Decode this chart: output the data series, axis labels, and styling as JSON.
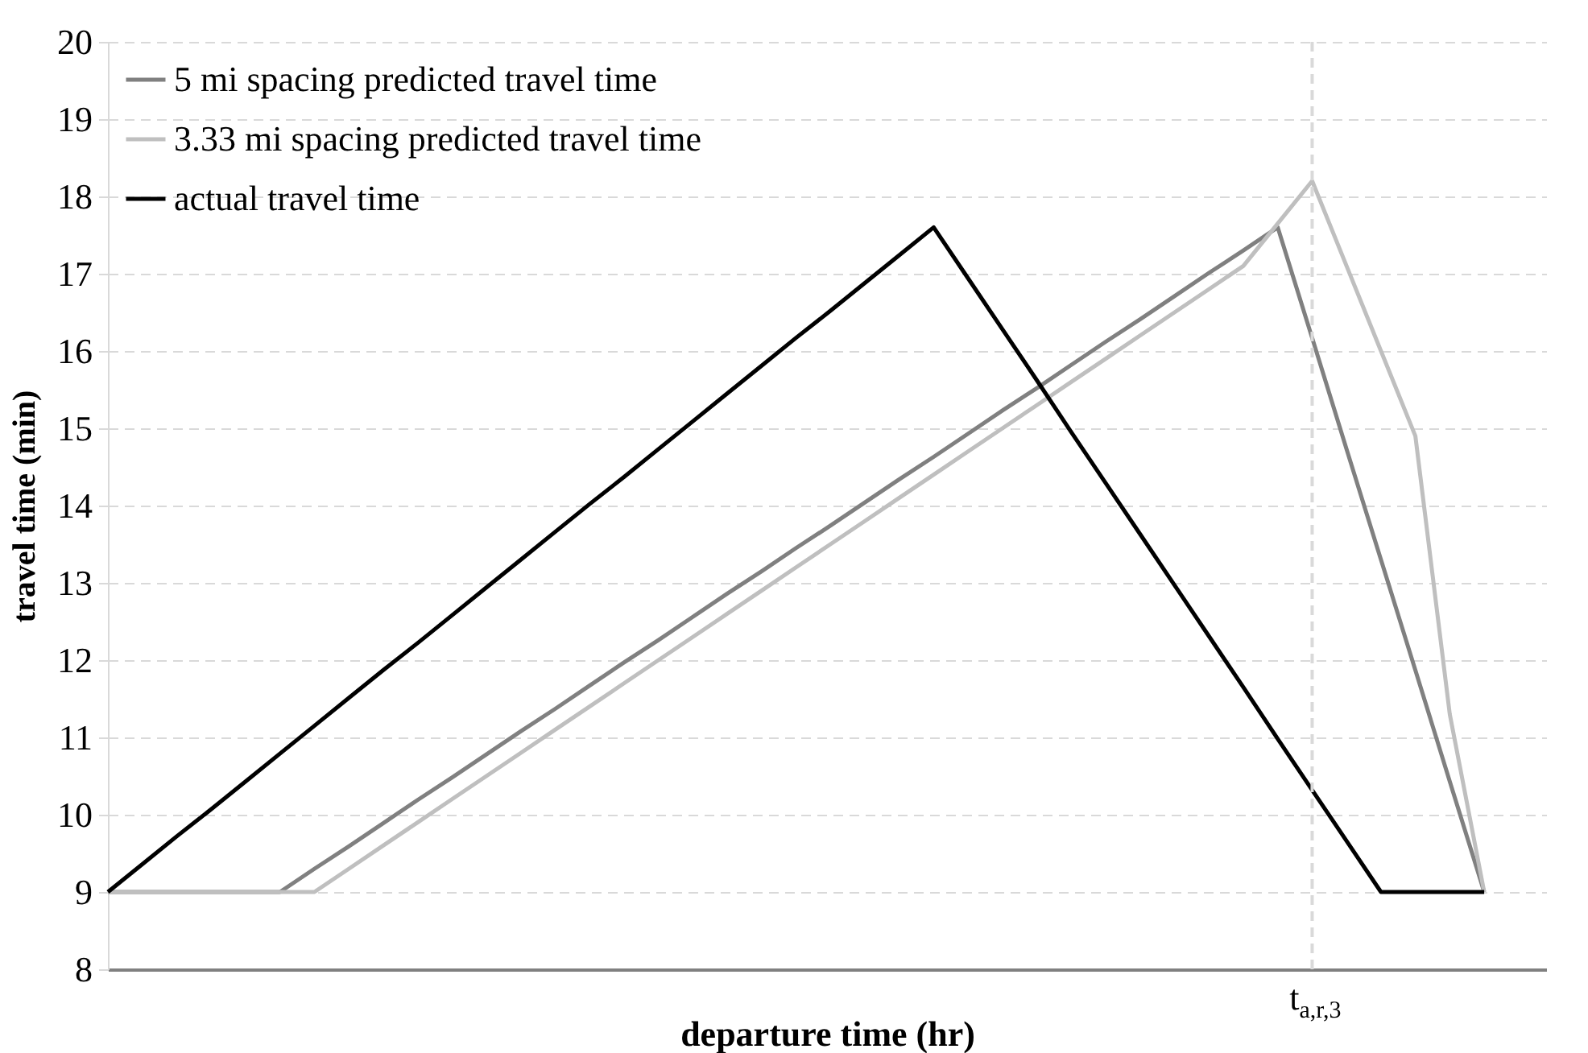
{
  "chart_data": {
    "type": "line",
    "xlabel": "departure time (hr)",
    "ylabel": "travel time (min)",
    "categories": [
      null,
      null,
      null,
      null,
      null,
      null,
      null,
      null,
      null,
      null,
      null,
      null,
      null,
      null,
      null,
      null,
      null,
      null,
      null,
      null,
      null,
      null,
      null,
      null,
      null,
      null,
      null,
      null,
      null,
      null,
      null,
      null,
      null,
      null,
      null,
      "t$_{a,r,3}$",
      null,
      null,
      null,
      null,
      null
    ],
    "ylim": [
      8,
      20
    ],
    "yticks": [
      8,
      9,
      10,
      11,
      12,
      13,
      14,
      15,
      16,
      17,
      18,
      19,
      20
    ],
    "grid": "y",
    "legend": "top left",
    "line_style": "solid",
    "marker": "none",
    "series": [
      {
        "name": "5 mi spacing predicted travel time",
        "color": "#808080",
        "values": [
          9,
          9,
          9,
          9,
          9,
          9,
          9.3,
          9.59,
          9.89,
          10.19,
          10.48,
          10.78,
          11.08,
          11.37,
          11.67,
          11.97,
          12.26,
          12.56,
          12.86,
          13.15,
          13.45,
          13.74,
          14.04,
          14.34,
          14.63,
          14.93,
          15.23,
          15.52,
          15.82,
          16.12,
          16.41,
          16.71,
          17.01,
          17.3,
          17.6,
          16.17,
          14.73,
          13.3,
          11.87,
          10.43,
          9
        ]
      },
      {
        "name": "3.33 mi spacing predicted travel time",
        "color": "#bfbfbf",
        "values": [
          9,
          9,
          9,
          9,
          9,
          9,
          9,
          9.3,
          9.6,
          9.9,
          10.2,
          10.5,
          10.8,
          11.1,
          11.4,
          11.7,
          12,
          12.3,
          12.6,
          12.9,
          13.2,
          13.5,
          13.8,
          14.1,
          14.4,
          14.7,
          15,
          15.3,
          15.6,
          15.9,
          16.2,
          16.5,
          16.8,
          17.1,
          17.65,
          18.2,
          17.1,
          16,
          14.9,
          11.3,
          9
        ]
      },
      {
        "name": "actual travel time",
        "color": "#000000",
        "values": [
          9,
          9.36,
          9.72,
          10.07,
          10.43,
          10.79,
          11.15,
          11.51,
          11.87,
          12.22,
          12.58,
          12.94,
          13.3,
          13.66,
          14.02,
          14.37,
          14.73,
          15.09,
          15.45,
          15.81,
          16.17,
          16.52,
          16.88,
          17.24,
          17.6,
          16.94,
          16.28,
          15.62,
          14.95,
          14.29,
          13.63,
          12.97,
          12.31,
          11.65,
          10.98,
          10.32,
          9.66,
          9,
          9,
          9,
          9
        ]
      }
    ],
    "ref_lines": [
      {
        "axis": "x",
        "value": "t$_{a,r,3}$",
        "color": "#d9d9d9",
        "line_style": "dashed"
      }
    ]
  }
}
